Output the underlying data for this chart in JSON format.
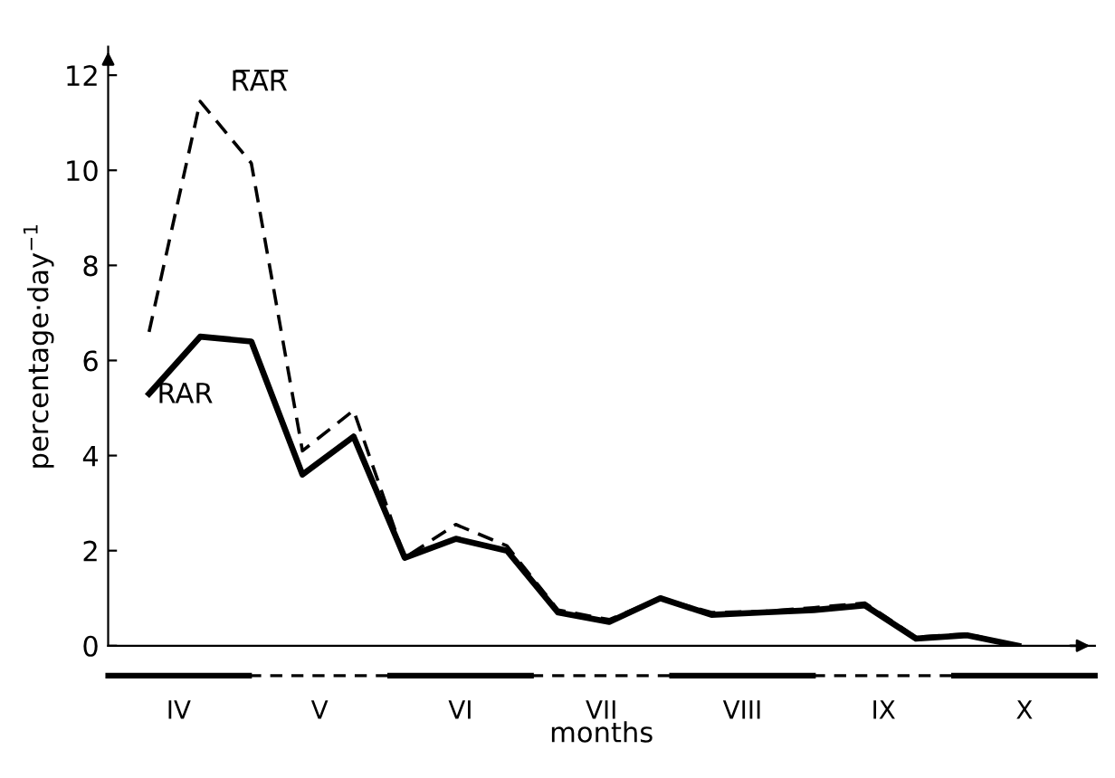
{
  "chart_data": {
    "type": "line",
    "xlabel": "months",
    "ylabel": "percentage·day$^{−1}$",
    "categories": [
      null,
      null,
      null,
      null,
      null,
      null,
      null,
      null,
      null,
      null,
      null,
      null,
      null,
      null,
      null,
      null,
      null,
      null
    ],
    "annotations": [
      "IV",
      "V",
      "VI",
      "VII",
      "VIII",
      "IX",
      "X"
    ],
    "ylim": [
      0,
      12.6
    ],
    "yticks": [
      0,
      2,
      4,
      6,
      8,
      10,
      12
    ],
    "grid": false,
    "legend": false,
    "series": [
      {
        "name": "R̅A̅R̅",
        "color": "#000000",
        "line_style": "dashed",
        "values": [
          6.6,
          11.45,
          10.15,
          4.1,
          4.95,
          1.85,
          2.55,
          2.1,
          0.75,
          0.55,
          1.0,
          0.7,
          0.72,
          0.8,
          0.9,
          0.18,
          0.25,
          0
        ]
      },
      {
        "name": "RAR",
        "color": "#000000",
        "line_style": "solid",
        "values": [
          5.3,
          6.5,
          6.4,
          3.6,
          4.4,
          1.85,
          2.25,
          2.0,
          0.7,
          0.5,
          1.0,
          0.65,
          0.7,
          0.75,
          0.85,
          0.15,
          0.22,
          0
        ]
      }
    ]
  }
}
